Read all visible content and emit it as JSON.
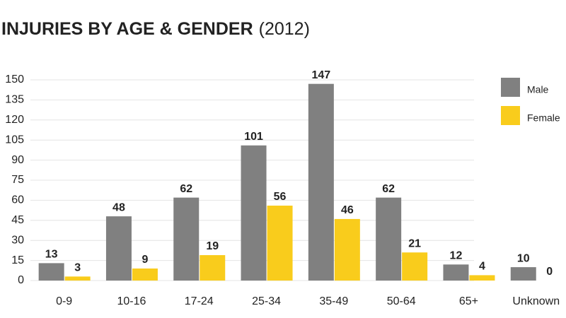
{
  "chart_data": {
    "type": "bar",
    "title": "INJURIES BY AGE & GENDER",
    "subtitle": "(2012)",
    "categories": [
      "0-9",
      "10-16",
      "17-24",
      "25-34",
      "35-49",
      "50-64",
      "65+",
      "Unknown"
    ],
    "series": [
      {
        "name": "Male",
        "color": "#808080",
        "values": [
          13,
          48,
          62,
          101,
          147,
          62,
          12,
          10
        ]
      },
      {
        "name": "Female",
        "color": "#f9cc1c",
        "values": [
          3,
          9,
          19,
          56,
          46,
          21,
          4,
          0
        ]
      }
    ],
    "ylim": [
      0,
      150
    ],
    "yticks": [
      0,
      15,
      30,
      45,
      60,
      75,
      90,
      105,
      120,
      135,
      150
    ],
    "grid": true,
    "legend": "top-right"
  }
}
